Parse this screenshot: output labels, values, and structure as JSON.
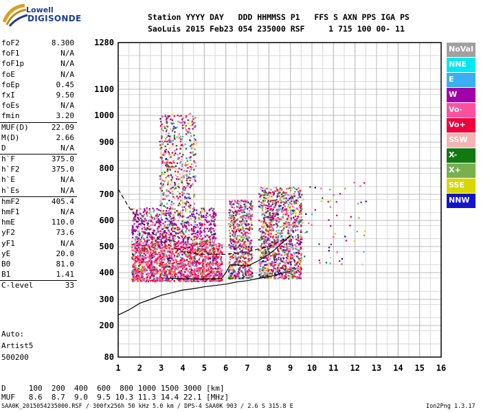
{
  "logo": {
    "line1": "Lowell",
    "line2": "DIGISONDE"
  },
  "header": {
    "line1": "Station YYYY DAY   DDD HHMMSS P1   FFS S AXN PPS IGA PS",
    "line2": "SaoLuis 2015 Feb23 054 235000 RSF     1 715 100 00- 11"
  },
  "params": [
    {
      "name": "foF2",
      "value": "8.300"
    },
    {
      "name": "foF1",
      "value": "N/A"
    },
    {
      "name": "foF1p",
      "value": "N/A"
    },
    {
      "name": "foE",
      "value": "N/A"
    },
    {
      "name": "foEp",
      "value": "0.45"
    },
    {
      "name": "fxI",
      "value": "9.50"
    },
    {
      "name": "foEs",
      "value": "N/A"
    },
    {
      "name": "fmin",
      "value": "3.20"
    },
    {
      "name": "MUF(D)",
      "value": "22.09",
      "sep": true
    },
    {
      "name": "M(D)",
      "value": "2.66"
    },
    {
      "name": "D",
      "value": "N/A"
    },
    {
      "name": "h`F",
      "value": "375.0",
      "sep": true
    },
    {
      "name": "h`F2",
      "value": "375.0"
    },
    {
      "name": "h`E",
      "value": "N/A"
    },
    {
      "name": "h`Es",
      "value": "N/A"
    },
    {
      "name": "hmF2",
      "value": "405.4",
      "sep": true
    },
    {
      "name": "hmF1",
      "value": "N/A"
    },
    {
      "name": "hmE",
      "value": "110.0"
    },
    {
      "name": "yF2",
      "value": "73.6"
    },
    {
      "name": "yF1",
      "value": "N/A"
    },
    {
      "name": "yE",
      "value": "20.0"
    },
    {
      "name": "B0",
      "value": "81.0"
    },
    {
      "name": "B1",
      "value": "1.41"
    },
    {
      "name": "C-level",
      "value": "33",
      "sep": true
    }
  ],
  "auto": {
    "label": "Auto:",
    "name": "Artist5",
    "code": "500200"
  },
  "legend": [
    {
      "label": "NoVal",
      "color": "#a0a0a0"
    },
    {
      "label": "NNE",
      "color": "#00e8f0"
    },
    {
      "label": "E",
      "color": "#3ab0f0"
    },
    {
      "label": "W",
      "color": "#a000a8"
    },
    {
      "label": "Vo-",
      "color": "#ff50a0"
    },
    {
      "label": "Vo+",
      "color": "#f0003c"
    },
    {
      "label": "SSW",
      "color": "#f4b4b4"
    },
    {
      "label": "X-",
      "color": "#107a10"
    },
    {
      "label": "X+",
      "color": "#78b050"
    },
    {
      "label": "SSE",
      "color": "#d8d800"
    },
    {
      "label": "NNW",
      "color": "#1414c8"
    }
  ],
  "bottom": {
    "d_line": "D     100  200  400  600  800 1000 1500 3000 [km]",
    "muf_line": "MUF   8.6  8.7  9.0  9.5 10.3 11.3 14.4 22.1 [MHz]"
  },
  "footer": {
    "left": "SAA0K_2015054235000.RSF / 300fx256h 50 kHz 5.0 km / DPS-4 SAA0K 903 / 2.6 S 315.8 E",
    "right": "Ion2Png 1.3.17"
  },
  "chart_data": {
    "type": "scatter",
    "title": "",
    "xlabel": "",
    "ylabel": "",
    "xlim": [
      1,
      16
    ],
    "ylim_label": "virtual height (km), nonlinear scale",
    "x_ticks": [
      1,
      2,
      3,
      4,
      5,
      6,
      7,
      8,
      9,
      10,
      11,
      12,
      13,
      14,
      15,
      16
    ],
    "y_ticks": [
      80,
      200,
      300,
      400,
      500,
      600,
      700,
      800,
      900,
      1000,
      1100,
      1280
    ],
    "grid": true,
    "legend_position": "right",
    "trace_lines": [
      {
        "name": "",
        "style": "solid",
        "points": [
          [
            1,
            240
          ],
          [
            1.5,
            260
          ],
          [
            2,
            285
          ],
          [
            2.5,
            300
          ],
          [
            3,
            315
          ],
          [
            3.5,
            325
          ],
          [
            4,
            335
          ],
          [
            4.5,
            340
          ],
          [
            5,
            347
          ],
          [
            5.5,
            352
          ],
          [
            6,
            357
          ],
          [
            6.5,
            365
          ],
          [
            7,
            370
          ],
          [
            7.5,
            378
          ],
          [
            8,
            385
          ],
          [
            8.5,
            395
          ],
          [
            9,
            405
          ]
        ]
      },
      {
        "name": "",
        "style": "solid",
        "points": [
          [
            3,
            380
          ],
          [
            4,
            377
          ],
          [
            5,
            376
          ],
          [
            5.8,
            378
          ],
          [
            6,
            400
          ],
          [
            6.2,
            430
          ],
          [
            6.5,
            430
          ],
          [
            7,
            425
          ],
          [
            7.5,
            445
          ],
          [
            8,
            470
          ],
          [
            8.3,
            490
          ],
          [
            8.7,
            520
          ],
          [
            9,
            540
          ]
        ]
      },
      {
        "name": "",
        "style": "dashed",
        "points": [
          [
            1,
            720
          ],
          [
            1.5,
            650
          ],
          [
            2,
            600
          ],
          [
            2.5,
            560
          ],
          [
            3,
            520
          ],
          [
            3.5,
            500
          ],
          [
            4,
            480
          ],
          [
            5,
            470
          ],
          [
            6,
            470
          ],
          [
            7,
            480
          ],
          [
            8,
            500
          ],
          [
            9,
            540
          ]
        ]
      }
    ],
    "echo_regions": [
      {
        "name": "cluster-low",
        "x": [
          1.6,
          5.8
        ],
        "y": [
          370,
          520
        ]
      },
      {
        "name": "cluster-mid",
        "x": [
          1.6,
          5.5
        ],
        "y": [
          520,
          650
        ]
      },
      {
        "name": "cluster-high",
        "x": [
          2.9,
          4.6
        ],
        "y": [
          650,
          1010
        ]
      },
      {
        "name": "cluster-f2a",
        "x": [
          6.1,
          7.2
        ],
        "y": [
          380,
          680
        ]
      },
      {
        "name": "cluster-f2b",
        "x": [
          7.5,
          9.5
        ],
        "y": [
          380,
          730
        ]
      },
      {
        "name": "sparse",
        "x": [
          9.5,
          12.5
        ],
        "y": [
          430,
          760
        ]
      }
    ]
  }
}
